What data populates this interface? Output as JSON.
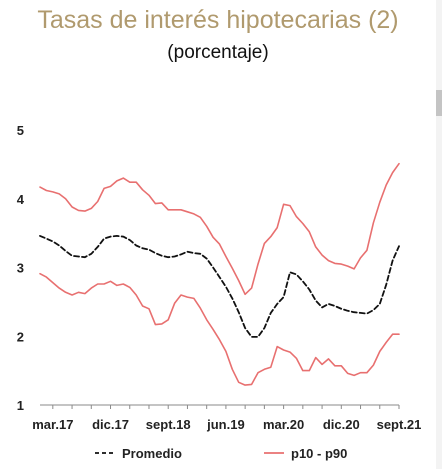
{
  "chart_data": {
    "type": "line",
    "title": "Tasas de interés hipotecarias (2)",
    "subtitle": "(porcentaje)",
    "xlabel": "",
    "ylabel": "",
    "ylim": [
      1,
      5
    ],
    "yticks": [
      1,
      2,
      3,
      4,
      5
    ],
    "x_tick_labels": [
      "mar.17",
      "dic.17",
      "sept.18",
      "jun.19",
      "mar.20",
      "dic.20",
      "sept.21"
    ],
    "x": [
      "ene.17",
      "feb.17",
      "mar.17",
      "abr.17",
      "may.17",
      "jun.17",
      "jul.17",
      "ago.17",
      "sept.17",
      "oct.17",
      "nov.17",
      "dic.17",
      "ene.18",
      "feb.18",
      "mar.18",
      "abr.18",
      "may.18",
      "jun.18",
      "jul.18",
      "ago.18",
      "sept.18",
      "oct.18",
      "nov.18",
      "dic.18",
      "ene.19",
      "feb.19",
      "mar.19",
      "abr.19",
      "may.19",
      "jun.19",
      "jul.19",
      "ago.19",
      "sept.19",
      "oct.19",
      "nov.19",
      "dic.19",
      "ene.20",
      "feb.20",
      "mar.20",
      "abr.20",
      "may.20",
      "jun.20",
      "jul.20",
      "ago.20",
      "sept.20",
      "oct.20",
      "nov.20",
      "dic.20",
      "ene.21",
      "feb.21",
      "mar.21",
      "abr.21",
      "may.21",
      "jun.21",
      "jul.21",
      "ago.21",
      "sept.21"
    ],
    "series": [
      {
        "name": "Promedio",
        "style": "dashed",
        "color": "#111111",
        "values": [
          3.46,
          3.42,
          3.38,
          3.32,
          3.24,
          3.17,
          3.16,
          3.15,
          3.2,
          3.3,
          3.42,
          3.45,
          3.46,
          3.45,
          3.4,
          3.32,
          3.28,
          3.26,
          3.21,
          3.17,
          3.15,
          3.16,
          3.19,
          3.23,
          3.21,
          3.2,
          3.13,
          3.0,
          2.86,
          2.72,
          2.55,
          2.35,
          2.12,
          1.99,
          1.99,
          2.12,
          2.34,
          2.47,
          2.57,
          2.93,
          2.9,
          2.8,
          2.68,
          2.52,
          2.42,
          2.47,
          2.44,
          2.4,
          2.37,
          2.35,
          2.34,
          2.33,
          2.38,
          2.47,
          2.75,
          3.1,
          3.31
        ]
      },
      {
        "name": "p10 - p90",
        "band": "p90",
        "color": "#e87070",
        "values": [
          4.17,
          4.12,
          4.1,
          4.07,
          4.0,
          3.88,
          3.83,
          3.82,
          3.86,
          3.96,
          4.15,
          4.18,
          4.26,
          4.3,
          4.24,
          4.24,
          4.13,
          4.05,
          3.93,
          3.94,
          3.84,
          3.84,
          3.84,
          3.81,
          3.78,
          3.73,
          3.6,
          3.44,
          3.34,
          3.16,
          2.99,
          2.81,
          2.61,
          2.7,
          3.05,
          3.35,
          3.45,
          3.58,
          3.92,
          3.9,
          3.74,
          3.64,
          3.52,
          3.3,
          3.18,
          3.1,
          3.06,
          3.05,
          3.02,
          2.98,
          3.14,
          3.25,
          3.65,
          3.95,
          4.2,
          4.38,
          4.51
        ]
      },
      {
        "name": "p10 - p90",
        "band": "p10",
        "color": "#e87070",
        "values": [
          2.91,
          2.86,
          2.78,
          2.7,
          2.64,
          2.6,
          2.64,
          2.62,
          2.7,
          2.76,
          2.76,
          2.8,
          2.74,
          2.76,
          2.71,
          2.6,
          2.44,
          2.4,
          2.17,
          2.18,
          2.24,
          2.48,
          2.6,
          2.57,
          2.55,
          2.41,
          2.24,
          2.1,
          1.95,
          1.78,
          1.52,
          1.33,
          1.29,
          1.3,
          1.47,
          1.52,
          1.55,
          1.85,
          1.8,
          1.77,
          1.68,
          1.5,
          1.5,
          1.69,
          1.59,
          1.67,
          1.57,
          1.57,
          1.46,
          1.43,
          1.47,
          1.47,
          1.58,
          1.78,
          1.91,
          2.03,
          2.03
        ]
      }
    ],
    "legend": {
      "placement": "bottom",
      "entries": [
        {
          "label": "Promedio",
          "style": "dashed",
          "color": "#111111"
        },
        {
          "label": "p10 - p90",
          "style": "solid",
          "color": "#e87070"
        }
      ]
    },
    "grid": false
  }
}
